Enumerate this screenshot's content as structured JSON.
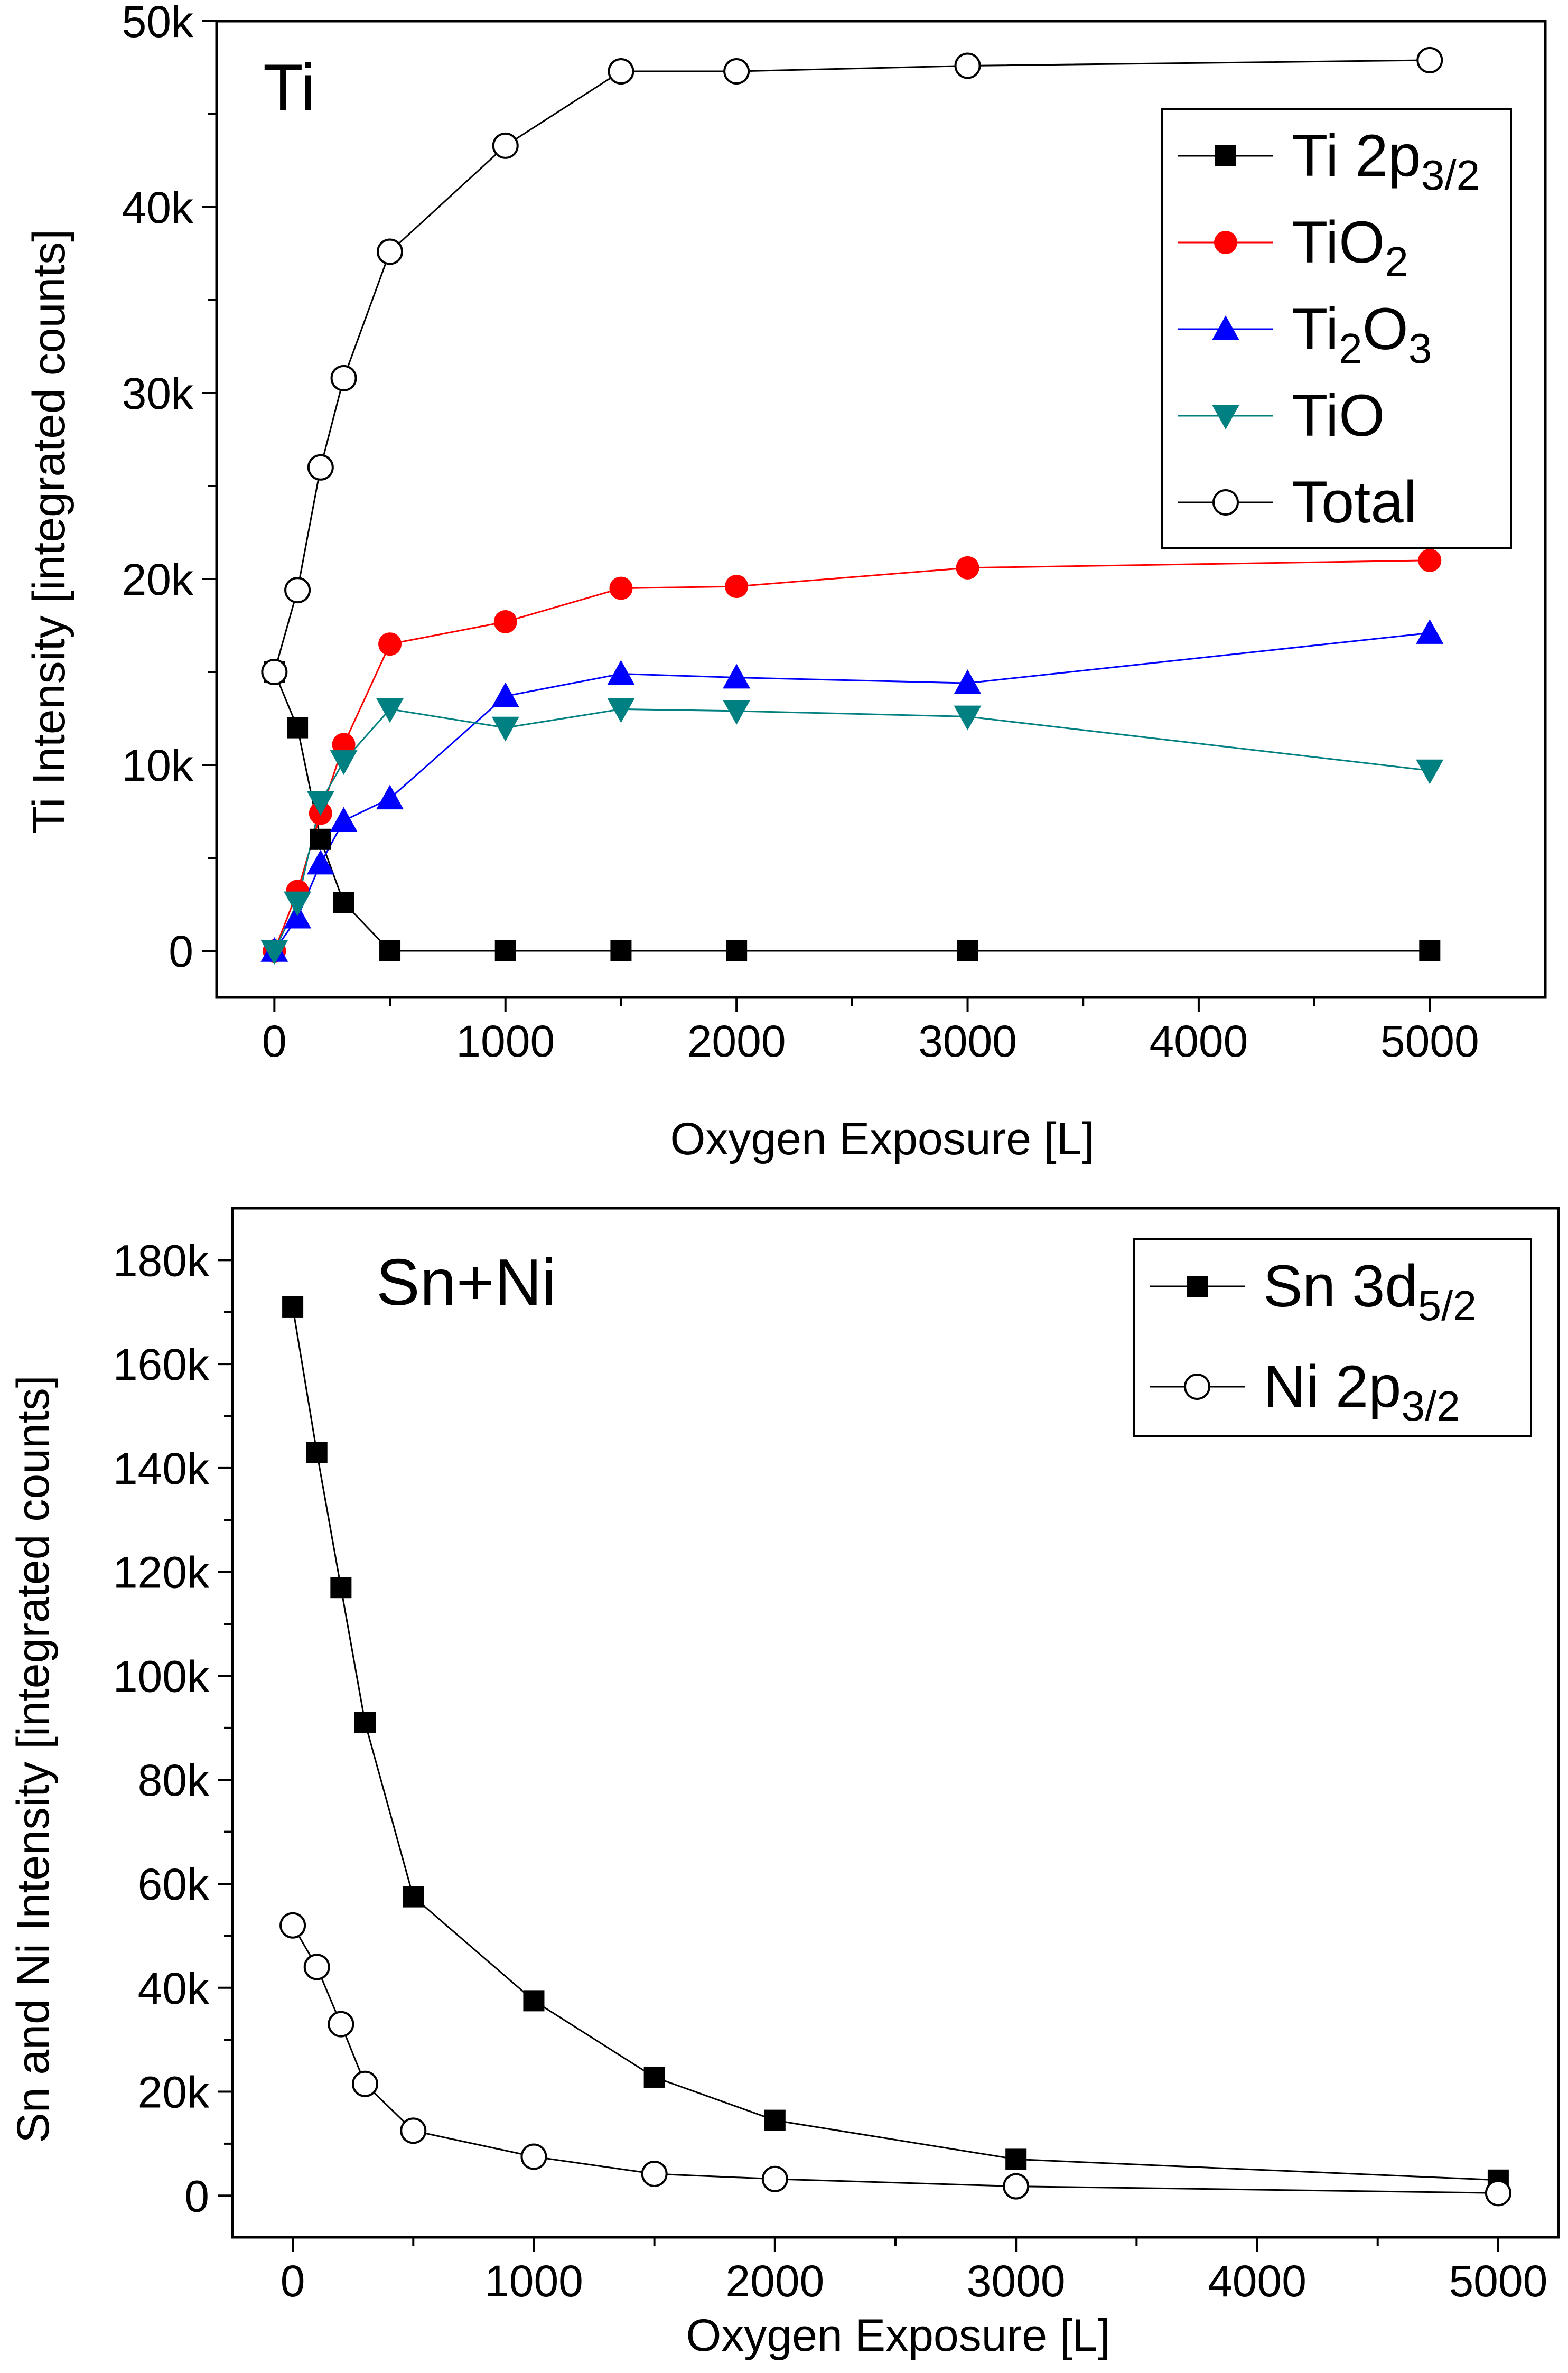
{
  "chart_data": [
    {
      "type": "line",
      "panel_label": "Ti",
      "xlabel": "Oxygen Exposure [L]",
      "ylabel": "Ti Intensity [integrated counts]",
      "xlim": [
        -250,
        5500
      ],
      "ylim": [
        -2500,
        50000
      ],
      "xticks": [
        0,
        1000,
        2000,
        3000,
        4000,
        5000
      ],
      "xtick_labels": [
        "0",
        "1000",
        "2000",
        "3000",
        "4000",
        "5000"
      ],
      "yticks": [
        0,
        10000,
        20000,
        30000,
        40000,
        50000
      ],
      "ytick_labels": [
        "0",
        "10k",
        "20k",
        "30k",
        "40k",
        "50k"
      ],
      "legend_position": "top-right",
      "x": [
        0,
        100,
        200,
        300,
        500,
        1000,
        1500,
        2000,
        3000,
        5000
      ],
      "series": [
        {
          "name": "Ti 2p",
          "subscript": "3/2",
          "marker": "square",
          "color": "#000000",
          "values": [
            15000,
            12000,
            6000,
            2600,
            0,
            0,
            0,
            0,
            0,
            0
          ]
        },
        {
          "name": "TiO",
          "subscript": "2",
          "marker": "circle",
          "color": "#ff0000",
          "values": [
            0,
            3200,
            7400,
            11100,
            16500,
            17700,
            19500,
            19600,
            20600,
            21000
          ]
        },
        {
          "name": "Ti",
          "subscript": "2",
          "name_suffix": "O",
          "subscript_suffix": "3",
          "marker": "triangle-up",
          "color": "#0000ff",
          "values": [
            0,
            1800,
            4700,
            7000,
            8200,
            13700,
            14900,
            14700,
            14400,
            17100
          ]
        },
        {
          "name": "TiO",
          "subscript": "",
          "marker": "triangle-down",
          "color": "#008080",
          "values": [
            0,
            2600,
            8000,
            10200,
            13000,
            12000,
            13000,
            12900,
            12600,
            9700
          ]
        },
        {
          "name": "Total",
          "subscript": "",
          "marker": "open-circle",
          "color": "#000000",
          "values": [
            15000,
            19400,
            26000,
            30800,
            37600,
            43300,
            47300,
            47300,
            47600,
            47900
          ]
        }
      ]
    },
    {
      "type": "line",
      "panel_label": "Sn+Ni",
      "xlabel": "Oxygen Exposure [L]",
      "ylabel": "Sn and Ni  Intensity [integrated counts]",
      "xlim": [
        -250,
        5250
      ],
      "ylim": [
        -8000,
        190000
      ],
      "xticks": [
        0,
        1000,
        2000,
        3000,
        4000,
        5000
      ],
      "xtick_labels": [
        "0",
        "1000",
        "2000",
        "3000",
        "4000",
        "5000"
      ],
      "yticks": [
        0,
        20000,
        40000,
        60000,
        80000,
        100000,
        120000,
        140000,
        160000,
        180000
      ],
      "ytick_labels": [
        "0",
        "20k",
        "40k",
        "60k",
        "80k",
        "100k",
        "120k",
        "140k",
        "160k",
        "180k"
      ],
      "legend_position": "top-right",
      "x": [
        0,
        100,
        200,
        300,
        500,
        1000,
        1500,
        2000,
        3000,
        5000
      ],
      "series": [
        {
          "name": "Sn 3d",
          "subscript": "5/2",
          "marker": "square",
          "color": "#000000",
          "values": [
            171000,
            143000,
            117000,
            91000,
            57500,
            37500,
            22800,
            14500,
            7000,
            3000
          ]
        },
        {
          "name": "Ni 2p",
          "subscript": "3/2",
          "marker": "open-circle",
          "color": "#000000",
          "values": [
            52000,
            44000,
            33000,
            21500,
            12500,
            7500,
            4200,
            3200,
            1800,
            500
          ]
        }
      ]
    }
  ]
}
